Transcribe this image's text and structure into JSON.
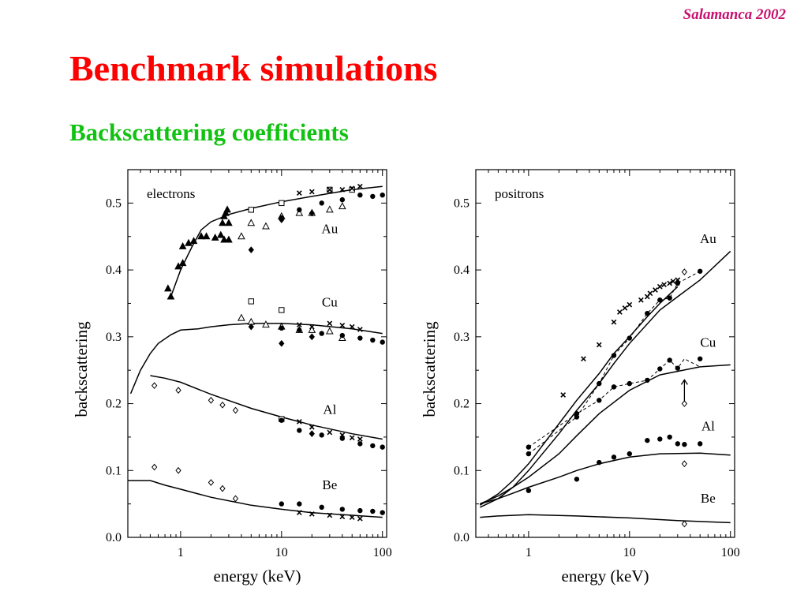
{
  "header": {
    "tag": "Salamanca 2002"
  },
  "slide": {
    "title": "Benchmark simulations",
    "subtitle": "Backscattering coefficients"
  },
  "colors": {
    "title": "#ff0000",
    "subtitle": "#12c212",
    "tag": "#c8106e"
  },
  "chart_data": [
    {
      "type": "scatter",
      "panel_label": "electrons",
      "xlabel": "energy (keV)",
      "ylabel": "backscattering",
      "xscale": "log",
      "xlim": [
        0.3,
        110
      ],
      "ylim": [
        0.0,
        0.55
      ],
      "xticks": [
        {
          "v": 1,
          "label": "1"
        },
        {
          "v": 10,
          "label": "10"
        },
        {
          "v": 100,
          "label": "100"
        }
      ],
      "yticks": [
        {
          "v": 0,
          "label": "0.0"
        },
        {
          "v": 0.1,
          "label": "0.1"
        },
        {
          "v": 0.2,
          "label": "0.2"
        },
        {
          "v": 0.3,
          "label": "0.3"
        },
        {
          "v": 0.4,
          "label": "0.4"
        },
        {
          "v": 0.5,
          "label": "0.5"
        }
      ],
      "curve_labels": [
        {
          "text": "Au",
          "x": 30,
          "y": 0.455
        },
        {
          "text": "Cu",
          "x": 30,
          "y": 0.345
        },
        {
          "text": "Al",
          "x": 30,
          "y": 0.185
        },
        {
          "text": "Be",
          "x": 30,
          "y": 0.072
        }
      ],
      "curves": [
        {
          "element": "Au",
          "x": [
            0.8,
            1.0,
            1.3,
            1.6,
            2.0,
            3,
            5,
            10,
            20,
            50,
            100
          ],
          "y": [
            0.36,
            0.4,
            0.435,
            0.46,
            0.472,
            0.483,
            0.492,
            0.502,
            0.51,
            0.52,
            0.525
          ]
        },
        {
          "element": "Cu",
          "x": [
            0.32,
            0.4,
            0.5,
            0.6,
            0.8,
            1.0,
            1.5,
            2,
            3,
            5,
            10,
            20,
            50,
            100
          ],
          "y": [
            0.215,
            0.25,
            0.275,
            0.29,
            0.303,
            0.31,
            0.312,
            0.315,
            0.318,
            0.32,
            0.32,
            0.318,
            0.312,
            0.305
          ]
        },
        {
          "element": "Al",
          "x": [
            0.5,
            0.7,
            1,
            2,
            5,
            10,
            20,
            50,
            100
          ],
          "y": [
            0.242,
            0.238,
            0.232,
            0.214,
            0.193,
            0.18,
            0.168,
            0.155,
            0.147
          ]
        },
        {
          "element": "Be",
          "x": [
            0.3,
            0.5,
            0.7,
            1,
            2,
            5,
            10,
            20,
            50,
            100
          ],
          "y": [
            0.085,
            0.085,
            0.078,
            0.072,
            0.06,
            0.048,
            0.042,
            0.037,
            0.033,
            0.03
          ]
        }
      ],
      "series": [
        {
          "marker": "triangle-filled",
          "x": [
            0.75,
            0.8,
            0.95,
            1.05,
            1.05,
            1.2,
            1.35,
            1.6,
            1.8,
            2.2,
            2.5,
            2.6,
            2.7,
            2.8,
            2.9,
            3.0,
            2.7,
            3.0
          ],
          "y": [
            0.372,
            0.36,
            0.405,
            0.41,
            0.435,
            0.44,
            0.443,
            0.45,
            0.45,
            0.448,
            0.452,
            0.47,
            0.48,
            0.485,
            0.49,
            0.47,
            0.445,
            0.445
          ]
        },
        {
          "marker": "square-open",
          "x": [
            5,
            5,
            10,
            10,
            10,
            30,
            50
          ],
          "y": [
            0.49,
            0.353,
            0.5,
            0.34,
            0.177,
            0.52,
            0.52
          ]
        },
        {
          "marker": "triangle-open",
          "x": [
            4,
            5,
            7,
            10,
            15,
            20,
            30,
            40,
            4,
            5,
            7,
            10,
            15,
            20,
            30,
            40
          ],
          "y": [
            0.45,
            0.47,
            0.465,
            0.48,
            0.485,
            0.485,
            0.49,
            0.495,
            0.328,
            0.322,
            0.318,
            0.315,
            0.31,
            0.31,
            0.308,
            0.298
          ]
        },
        {
          "marker": "cross",
          "x": [
            15,
            20,
            30,
            40,
            50,
            60,
            15,
            20,
            30,
            40,
            50,
            60,
            15,
            20,
            30,
            40,
            50,
            60,
            15,
            20,
            30,
            40,
            50,
            60
          ],
          "y": [
            0.515,
            0.517,
            0.52,
            0.52,
            0.522,
            0.525,
            0.318,
            0.315,
            0.32,
            0.317,
            0.315,
            0.311,
            0.173,
            0.165,
            0.157,
            0.153,
            0.149,
            0.147,
            0.037,
            0.035,
            0.033,
            0.031,
            0.03,
            0.028
          ]
        },
        {
          "marker": "circle-filled",
          "x": [
            10,
            15,
            25,
            40,
            60,
            80,
            100,
            10,
            15,
            25,
            40,
            60,
            80,
            100,
            10,
            15,
            25,
            40,
            60,
            80,
            100,
            10,
            15,
            25,
            40,
            60,
            80,
            100
          ],
          "y": [
            0.478,
            0.49,
            0.5,
            0.505,
            0.512,
            0.51,
            0.512,
            0.313,
            0.31,
            0.305,
            0.302,
            0.298,
            0.295,
            0.292,
            0.175,
            0.16,
            0.153,
            0.148,
            0.14,
            0.137,
            0.135,
            0.05,
            0.05,
            0.045,
            0.042,
            0.04,
            0.039,
            0.037
          ]
        },
        {
          "marker": "diamond-filled",
          "x": [
            5,
            10,
            20,
            5,
            10,
            20,
            20
          ],
          "y": [
            0.43,
            0.475,
            0.485,
            0.315,
            0.29,
            0.3,
            0.155
          ]
        },
        {
          "marker": "diamond-open",
          "x": [
            0.55,
            0.95,
            2,
            2.6,
            3.5,
            0.55,
            0.95,
            2,
            2.6,
            3.5
          ],
          "y": [
            0.227,
            0.22,
            0.205,
            0.198,
            0.19,
            0.105,
            0.1,
            0.082,
            0.073,
            0.058
          ]
        }
      ]
    },
    {
      "type": "scatter",
      "panel_label": "positrons",
      "xlabel": "energy (keV)",
      "ylabel": "backscattering",
      "xscale": "log",
      "xlim": [
        0.3,
        110
      ],
      "ylim": [
        0.0,
        0.55
      ],
      "xticks": [
        {
          "v": 1,
          "label": "1"
        },
        {
          "v": 10,
          "label": "10"
        },
        {
          "v": 100,
          "label": "100"
        }
      ],
      "yticks": [
        {
          "v": 0,
          "label": "0.0"
        },
        {
          "v": 0.1,
          "label": "0.1"
        },
        {
          "v": 0.2,
          "label": "0.2"
        },
        {
          "v": 0.3,
          "label": "0.3"
        },
        {
          "v": 0.4,
          "label": "0.4"
        },
        {
          "v": 0.5,
          "label": "0.5"
        }
      ],
      "curve_labels": [
        {
          "text": "Au",
          "x": 60,
          "y": 0.44
        },
        {
          "text": "Cu",
          "x": 60,
          "y": 0.285
        },
        {
          "text": "Al",
          "x": 60,
          "y": 0.16
        },
        {
          "text": "Be",
          "x": 60,
          "y": 0.052
        }
      ],
      "curves": [
        {
          "element": "Au",
          "x": [
            0.33,
            0.5,
            0.7,
            1,
            2,
            3,
            5,
            7,
            10,
            20,
            30,
            50,
            100
          ],
          "y": [
            0.045,
            0.058,
            0.075,
            0.1,
            0.155,
            0.19,
            0.23,
            0.26,
            0.29,
            0.34,
            0.36,
            0.385,
            0.428
          ]
        },
        {
          "element": "Au-alt",
          "x": [
            0.33,
            0.5,
            0.7,
            1,
            2,
            3,
            5,
            7,
            10,
            15,
            20,
            30
          ],
          "y": [
            0.048,
            0.065,
            0.085,
            0.11,
            0.17,
            0.205,
            0.245,
            0.275,
            0.3,
            0.33,
            0.35,
            0.375
          ]
        },
        {
          "element": "Cu",
          "x": [
            0.33,
            0.5,
            0.7,
            1,
            2,
            3,
            5,
            10,
            20,
            50,
            100
          ],
          "y": [
            0.05,
            0.062,
            0.075,
            0.09,
            0.125,
            0.152,
            0.185,
            0.22,
            0.243,
            0.255,
            0.258
          ]
        },
        {
          "element": "Al",
          "x": [
            0.33,
            0.5,
            0.7,
            1,
            2,
            3,
            5,
            10,
            20,
            50,
            100
          ],
          "y": [
            0.05,
            0.058,
            0.066,
            0.075,
            0.09,
            0.1,
            0.11,
            0.12,
            0.125,
            0.126,
            0.123
          ]
        },
        {
          "element": "Be",
          "x": [
            0.33,
            0.5,
            1,
            3,
            10,
            30,
            100
          ],
          "y": [
            0.03,
            0.032,
            0.034,
            0.032,
            0.029,
            0.025,
            0.022
          ]
        }
      ],
      "dashed_series": [
        {
          "x": [
            1,
            3,
            5,
            7,
            10,
            15,
            20,
            25,
            30,
            50
          ],
          "y": [
            0.125,
            0.18,
            0.23,
            0.272,
            0.298,
            0.335,
            0.355,
            0.358,
            0.38,
            0.398
          ]
        },
        {
          "x": [
            1,
            3,
            5,
            7,
            10,
            15,
            20,
            25,
            30,
            35,
            50
          ],
          "y": [
            0.135,
            0.185,
            0.205,
            0.225,
            0.23,
            0.235,
            0.252,
            0.265,
            0.253,
            0.267,
            0.255
          ]
        }
      ],
      "series": [
        {
          "marker": "cross",
          "x": [
            2.2,
            3.5,
            5,
            7,
            8,
            9,
            10,
            13,
            15,
            16,
            18,
            20,
            22,
            25,
            27,
            30
          ],
          "y": [
            0.213,
            0.267,
            0.288,
            0.322,
            0.337,
            0.343,
            0.348,
            0.355,
            0.36,
            0.365,
            0.37,
            0.375,
            0.378,
            0.38,
            0.383,
            0.385
          ]
        },
        {
          "marker": "circle-filled",
          "x": [
            1,
            3,
            5,
            7,
            10,
            15,
            20,
            25,
            30,
            50,
            1,
            3,
            5,
            7,
            10,
            15,
            20,
            25,
            30,
            50,
            1,
            3,
            5,
            7,
            10,
            15,
            20,
            25,
            30,
            35,
            50
          ],
          "y": [
            0.125,
            0.18,
            0.23,
            0.272,
            0.298,
            0.335,
            0.355,
            0.358,
            0.38,
            0.398,
            0.135,
            0.185,
            0.205,
            0.225,
            0.23,
            0.235,
            0.252,
            0.265,
            0.253,
            0.267,
            0.07,
            0.087,
            0.112,
            0.12,
            0.125,
            0.145,
            0.147,
            0.15,
            0.14,
            0.139,
            0.14
          ]
        },
        {
          "marker": "diamond-open",
          "x": [
            35,
            35,
            35,
            35
          ],
          "y": [
            0.397,
            0.2,
            0.11,
            0.02
          ]
        }
      ],
      "arrow": {
        "x": 35,
        "y_from": 0.21,
        "y_to": 0.225
      }
    }
  ]
}
